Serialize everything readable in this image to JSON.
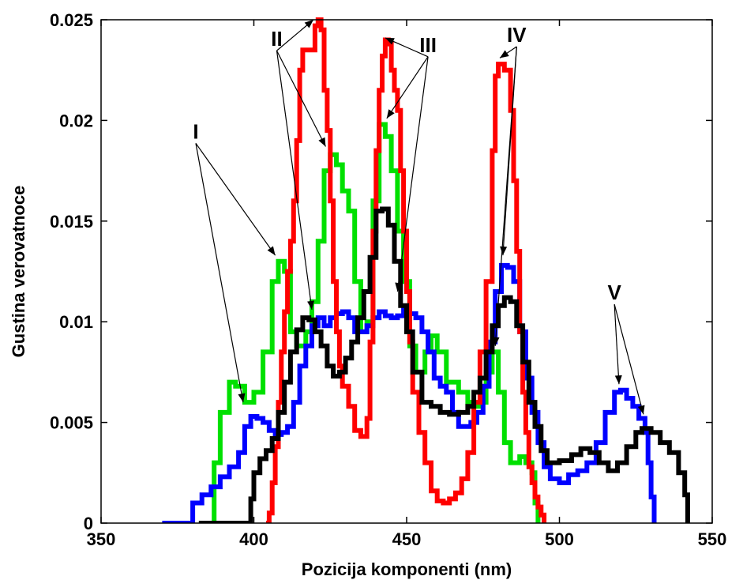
{
  "chart_data": {
    "type": "line",
    "xlabel": "Pozicija komponenti (nm)",
    "ylabel": "Gustina verovatnoce",
    "xlim": [
      350,
      550
    ],
    "ylim": [
      0,
      0.025
    ],
    "x_ticks": [
      350,
      400,
      450,
      500,
      550
    ],
    "y_ticks": [
      0,
      0.005,
      0.01,
      0.015,
      0.02,
      0.025
    ],
    "x_tick_labels": [
      "350",
      "400",
      "450",
      "500",
      "550"
    ],
    "y_tick_labels": [
      "0",
      "0.005",
      "0.01",
      "0.015",
      "0.02",
      "0.025"
    ],
    "grid": false,
    "series": [
      {
        "color": "#00e000",
        "points": [
          [
            386,
            0
          ],
          [
            387,
            0.003
          ],
          [
            389,
            0.0055
          ],
          [
            392,
            0.007
          ],
          [
            394,
            0.0068
          ],
          [
            397,
            0.006
          ],
          [
            400,
            0.0065
          ],
          [
            403,
            0.0085
          ],
          [
            406,
            0.012
          ],
          [
            408,
            0.013
          ],
          [
            410,
            0.0125
          ],
          [
            412,
            0.0095
          ],
          [
            414,
            0.0088
          ],
          [
            417,
            0.0095
          ],
          [
            419,
            0.011
          ],
          [
            421,
            0.014
          ],
          [
            423,
            0.0175
          ],
          [
            425,
            0.0183
          ],
          [
            427,
            0.0178
          ],
          [
            429,
            0.0165
          ],
          [
            431,
            0.0155
          ],
          [
            433,
            0.012
          ],
          [
            435,
            0.0095
          ],
          [
            437,
            0.01
          ],
          [
            439,
            0.016
          ],
          [
            441,
            0.0198
          ],
          [
            443,
            0.0192
          ],
          [
            445,
            0.0175
          ],
          [
            447,
            0.0145
          ],
          [
            449,
            0.012
          ],
          [
            451,
            0.0088
          ],
          [
            453,
            0.0075
          ],
          [
            456,
            0.0085
          ],
          [
            458,
            0.0093
          ],
          [
            460,
            0.0085
          ],
          [
            463,
            0.007
          ],
          [
            467,
            0.0065
          ],
          [
            470,
            0.006
          ],
          [
            472,
            0.0058
          ],
          [
            474,
            0.006
          ],
          [
            476,
            0.0075
          ],
          [
            478,
            0.0085
          ],
          [
            480,
            0.0065
          ],
          [
            482,
            0.004
          ],
          [
            484,
            0.003
          ],
          [
            487,
            0.0033
          ],
          [
            489,
            0.003
          ],
          [
            491,
            0.0025
          ],
          [
            492,
            0.001
          ],
          [
            493,
            0
          ]
        ]
      },
      {
        "color": "#0000ff",
        "points": [
          [
            370,
            0
          ],
          [
            378,
            0
          ],
          [
            380,
            0.001
          ],
          [
            383,
            0.0014
          ],
          [
            386,
            0.0018
          ],
          [
            389,
            0.0023
          ],
          [
            392,
            0.0028
          ],
          [
            395,
            0.0035
          ],
          [
            397,
            0.0048
          ],
          [
            399,
            0.0053
          ],
          [
            401,
            0.0052
          ],
          [
            403,
            0.005
          ],
          [
            405,
            0.0046
          ],
          [
            407,
            0.0044
          ],
          [
            409,
            0.0045
          ],
          [
            411,
            0.0048
          ],
          [
            413,
            0.006
          ],
          [
            415,
            0.0078
          ],
          [
            417,
            0.0088
          ],
          [
            419,
            0.0098
          ],
          [
            421,
            0.0102
          ],
          [
            423,
            0.0098
          ],
          [
            425,
            0.0102
          ],
          [
            427,
            0.0104
          ],
          [
            429,
            0.0105
          ],
          [
            431,
            0.0102
          ],
          [
            433,
            0.0095
          ],
          [
            435,
            0.0095
          ],
          [
            437,
            0.0098
          ],
          [
            439,
            0.0102
          ],
          [
            441,
            0.0105
          ],
          [
            443,
            0.0103
          ],
          [
            445,
            0.0102
          ],
          [
            447,
            0.0103
          ],
          [
            449,
            0.0106
          ],
          [
            451,
            0.0104
          ],
          [
            453,
            0.0102
          ],
          [
            455,
            0.0095
          ],
          [
            457,
            0.0085
          ],
          [
            459,
            0.0072
          ],
          [
            461,
            0.0068
          ],
          [
            463,
            0.0065
          ],
          [
            465,
            0.0055
          ],
          [
            467,
            0.0048
          ],
          [
            469,
            0.0048
          ],
          [
            471,
            0.005
          ],
          [
            473,
            0.0055
          ],
          [
            475,
            0.0068
          ],
          [
            477,
            0.009
          ],
          [
            479,
            0.0115
          ],
          [
            481,
            0.0128
          ],
          [
            483,
            0.0127
          ],
          [
            485,
            0.012
          ],
          [
            487,
            0.0095
          ],
          [
            489,
            0.0072
          ],
          [
            491,
            0.0055
          ],
          [
            493,
            0.004
          ],
          [
            495,
            0.0028
          ],
          [
            497,
            0.0022
          ],
          [
            500,
            0.002
          ],
          [
            503,
            0.0024
          ],
          [
            506,
            0.0026
          ],
          [
            509,
            0.003
          ],
          [
            512,
            0.004
          ],
          [
            515,
            0.0055
          ],
          [
            518,
            0.0065
          ],
          [
            520,
            0.0066
          ],
          [
            522,
            0.0062
          ],
          [
            524,
            0.0058
          ],
          [
            526,
            0.0052
          ],
          [
            528,
            0.0045
          ],
          [
            529,
            0.003
          ],
          [
            530,
            0.0013
          ],
          [
            531,
            0
          ]
        ]
      },
      {
        "color": "#ff0000",
        "points": [
          [
            404,
            0
          ],
          [
            405,
            0.0005
          ],
          [
            406,
            0.002
          ],
          [
            407,
            0.0038
          ],
          [
            408,
            0.006
          ],
          [
            409,
            0.0085
          ],
          [
            410,
            0.0105
          ],
          [
            411,
            0.0125
          ],
          [
            412,
            0.014
          ],
          [
            413,
            0.016
          ],
          [
            414,
            0.019
          ],
          [
            415,
            0.0225
          ],
          [
            416,
            0.0235
          ],
          [
            418,
            0.0235
          ],
          [
            420,
            0.0247
          ],
          [
            421,
            0.025
          ],
          [
            422,
            0.0245
          ],
          [
            423,
            0.0215
          ],
          [
            424,
            0.0195
          ],
          [
            425,
            0.016
          ],
          [
            426,
            0.012
          ],
          [
            427,
            0.0095
          ],
          [
            428,
            0.0078
          ],
          [
            429,
            0.0068
          ],
          [
            431,
            0.0058
          ],
          [
            433,
            0.0046
          ],
          [
            435,
            0.0043
          ],
          [
            437,
            0.0052
          ],
          [
            438,
            0.009
          ],
          [
            439,
            0.0145
          ],
          [
            440,
            0.0185
          ],
          [
            441,
            0.0215
          ],
          [
            442,
            0.0232
          ],
          [
            443,
            0.024
          ],
          [
            444,
            0.0238
          ],
          [
            445,
            0.0225
          ],
          [
            446,
            0.0215
          ],
          [
            447,
            0.0205
          ],
          [
            448,
            0.0175
          ],
          [
            449,
            0.0145
          ],
          [
            450,
            0.0115
          ],
          [
            451,
            0.009
          ],
          [
            452,
            0.0065
          ],
          [
            454,
            0.0045
          ],
          [
            456,
            0.003
          ],
          [
            458,
            0.0016
          ],
          [
            460,
            0.0011
          ],
          [
            462,
            0.001
          ],
          [
            464,
            0.0012
          ],
          [
            466,
            0.0015
          ],
          [
            468,
            0.0022
          ],
          [
            470,
            0.0035
          ],
          [
            472,
            0.006
          ],
          [
            474,
            0.0085
          ],
          [
            476,
            0.012
          ],
          [
            478,
            0.0185
          ],
          [
            479,
            0.0222
          ],
          [
            480,
            0.0228
          ],
          [
            482,
            0.0225
          ],
          [
            484,
            0.0205
          ],
          [
            485,
            0.017
          ],
          [
            486,
            0.0135
          ],
          [
            487,
            0.0095
          ],
          [
            488,
            0.0065
          ],
          [
            489,
            0.0045
          ],
          [
            490,
            0.0028
          ],
          [
            491,
            0.002
          ],
          [
            492,
            0.0013
          ],
          [
            493,
            0.0008
          ],
          [
            494,
            0.0004
          ],
          [
            495,
            0
          ]
        ]
      },
      {
        "color": "#000000",
        "points": [
          [
            382,
            0
          ],
          [
            398,
            0
          ],
          [
            399,
            0.0012
          ],
          [
            400,
            0.0025
          ],
          [
            402,
            0.0032
          ],
          [
            404,
            0.0036
          ],
          [
            406,
            0.0042
          ],
          [
            408,
            0.0055
          ],
          [
            410,
            0.007
          ],
          [
            412,
            0.0085
          ],
          [
            414,
            0.0096
          ],
          [
            416,
            0.0102
          ],
          [
            418,
            0.0101
          ],
          [
            420,
            0.0095
          ],
          [
            422,
            0.0088
          ],
          [
            424,
            0.0078
          ],
          [
            426,
            0.0073
          ],
          [
            428,
            0.0075
          ],
          [
            430,
            0.0082
          ],
          [
            432,
            0.009
          ],
          [
            434,
            0.0102
          ],
          [
            436,
            0.0115
          ],
          [
            438,
            0.0132
          ],
          [
            440,
            0.0155
          ],
          [
            442,
            0.0156
          ],
          [
            444,
            0.0148
          ],
          [
            446,
            0.013
          ],
          [
            448,
            0.0108
          ],
          [
            450,
            0.0095
          ],
          [
            452,
            0.0075
          ],
          [
            455,
            0.006
          ],
          [
            458,
            0.0058
          ],
          [
            461,
            0.0055
          ],
          [
            464,
            0.0054
          ],
          [
            467,
            0.0055
          ],
          [
            470,
            0.0058
          ],
          [
            472,
            0.0065
          ],
          [
            474,
            0.0072
          ],
          [
            476,
            0.0085
          ],
          [
            478,
            0.0098
          ],
          [
            480,
            0.0108
          ],
          [
            482,
            0.0112
          ],
          [
            484,
            0.011
          ],
          [
            486,
            0.0098
          ],
          [
            488,
            0.008
          ],
          [
            490,
            0.006
          ],
          [
            492,
            0.0048
          ],
          [
            494,
            0.0036
          ],
          [
            496,
            0.003
          ],
          [
            500,
            0.0031
          ],
          [
            504,
            0.0034
          ],
          [
            507,
            0.0037
          ],
          [
            510,
            0.0035
          ],
          [
            513,
            0.003
          ],
          [
            516,
            0.0026
          ],
          [
            519,
            0.003
          ],
          [
            522,
            0.0038
          ],
          [
            525,
            0.0045
          ],
          [
            527,
            0.0047
          ],
          [
            530,
            0.0045
          ],
          [
            533,
            0.004
          ],
          [
            536,
            0.0035
          ],
          [
            539,
            0.0025
          ],
          [
            541,
            0.0014
          ],
          [
            542,
            0
          ]
        ]
      }
    ],
    "annotations": [
      {
        "text": "I",
        "label_at": [
          381,
          0.0191
        ],
        "arrows_to": [
          [
            396.5,
            0.006
          ],
          [
            407,
            0.0133
          ]
        ]
      },
      {
        "text": "II",
        "label_at": [
          407.5,
          0.0237
        ],
        "arrows_to": [
          [
            419.5,
            0.025
          ],
          [
            423.5,
            0.0187
          ],
          [
            419,
            0.0106
          ]
        ]
      },
      {
        "text": "III",
        "label_at": [
          457,
          0.0234
        ],
        "arrows_to": [
          [
            443,
            0.0241
          ],
          [
            443.5,
            0.0201
          ],
          [
            447,
            0.0115
          ]
        ]
      },
      {
        "text": "IV",
        "label_at": [
          486,
          0.0239
        ],
        "arrows_to": [
          [
            480.5,
            0.0231
          ],
          [
            481.5,
            0.0133
          ],
          [
            479,
            0.0088
          ]
        ]
      },
      {
        "text": "V",
        "label_at": [
          518,
          0.0111
        ],
        "arrows_to": [
          [
            519.5,
            0.0069
          ],
          [
            527.5,
            0.0054
          ]
        ]
      }
    ]
  }
}
